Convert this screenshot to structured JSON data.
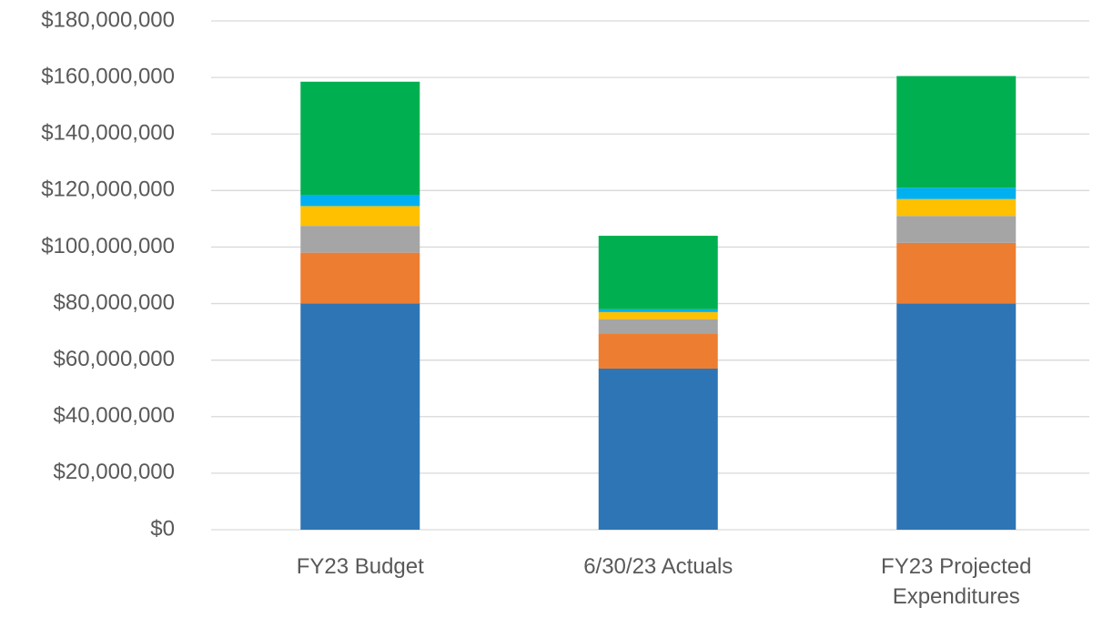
{
  "chart_data": {
    "type": "stacked-bar",
    "categories": [
      "FY23 Budget",
      "6/30/23 Actuals",
      "FY23 Projected Expenditures"
    ],
    "series": [
      {
        "color": "#2e75b6",
        "values": [
          80000000,
          57000000,
          80000000
        ]
      },
      {
        "color": "#ed7d31",
        "values": [
          18000000,
          12500000,
          21500000
        ]
      },
      {
        "color": "#a5a5a5",
        "values": [
          9500000,
          5000000,
          9500000
        ]
      },
      {
        "color": "#ffc000",
        "values": [
          7000000,
          2500000,
          6000000
        ]
      },
      {
        "color": "#00b0f0",
        "values": [
          4000000,
          1000000,
          4000000
        ]
      },
      {
        "color": "#00b050",
        "values": [
          40000000,
          26000000,
          39500000
        ]
      }
    ],
    "ylim": [
      0,
      180000000
    ],
    "yticks": [
      {
        "value": 0,
        "label": "$0"
      },
      {
        "value": 20000000,
        "label": "$20,000,000"
      },
      {
        "value": 40000000,
        "label": "$40,000,000"
      },
      {
        "value": 60000000,
        "label": "$60,000,000"
      },
      {
        "value": 80000000,
        "label": "$80,000,000"
      },
      {
        "value": 100000000,
        "label": "$100,000,000"
      },
      {
        "value": 120000000,
        "label": "$120,000,000"
      },
      {
        "value": 140000000,
        "label": "$140,000,000"
      },
      {
        "value": 160000000,
        "label": "$160,000,000"
      },
      {
        "value": 180000000,
        "label": "$180,000,000"
      }
    ],
    "grid": true
  }
}
